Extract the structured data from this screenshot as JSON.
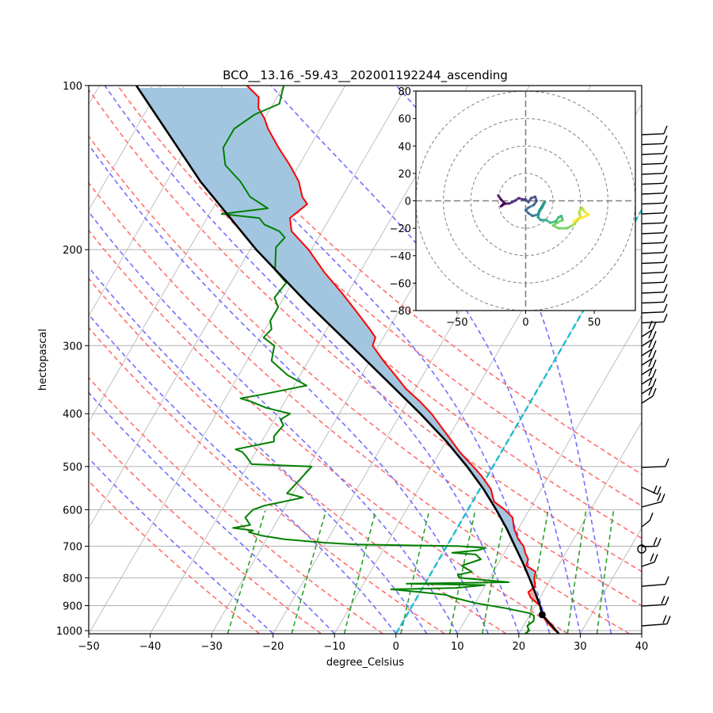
{
  "chart_data": {
    "type": "line",
    "subtype": "skew-t log-p",
    "title": "BCO__13.16_-59.43__202001192244_ascending",
    "xlabel": "degree_Celsius",
    "ylabel": "hectopascal",
    "xlim": [
      -50,
      40
    ],
    "ylim": [
      1013,
      100
    ],
    "yscale": "log",
    "grid": true,
    "x_ticks": [
      "−50",
      "−40",
      "−30",
      "−20",
      "−10",
      "0",
      "10",
      "20",
      "30",
      "40"
    ],
    "x_tick_values": [
      -50,
      -40,
      -30,
      -20,
      -10,
      0,
      10,
      20,
      30,
      40
    ],
    "y_ticks": [
      "100",
      "200",
      "300",
      "400",
      "500",
      "600",
      "700",
      "800",
      "900",
      "1000"
    ],
    "y_tick_values": [
      100,
      200,
      300,
      400,
      500,
      600,
      700,
      800,
      900,
      1000
    ],
    "colors": {
      "temperature": "#ff0000",
      "dewpoint": "#008000",
      "parcel": "#000000",
      "cape": "#f4a7a9",
      "cin": "#a3c6e0",
      "dry_adiabat": "#ff7070",
      "moist_adiabat": "#7070ff",
      "mixing_ratio": "#2ca02c",
      "zero_isotherm": "#17becf",
      "isotherm": "#b0b0b0"
    },
    "series": [
      {
        "name": "temperature",
        "points": [
          [
            1013,
            26.5
          ],
          [
            1000,
            25.6
          ],
          [
            960,
            23.2
          ],
          [
            935,
            22.0
          ],
          [
            900,
            20.8
          ],
          [
            870,
            18.5
          ],
          [
            850,
            17.6
          ],
          [
            830,
            18.2
          ],
          [
            800,
            17.2
          ],
          [
            780,
            16.9
          ],
          [
            760,
            14.8
          ],
          [
            740,
            14.5
          ],
          [
            720,
            13.4
          ],
          [
            700,
            12.5
          ],
          [
            680,
            11.0
          ],
          [
            650,
            9.3
          ],
          [
            620,
            8.0
          ],
          [
            600,
            6.0
          ],
          [
            580,
            3.5
          ],
          [
            550,
            1.8
          ],
          [
            520,
            -1.0
          ],
          [
            500,
            -3.2
          ],
          [
            470,
            -6.8
          ],
          [
            450,
            -9.0
          ],
          [
            420,
            -12.5
          ],
          [
            400,
            -15.0
          ],
          [
            380,
            -18.0
          ],
          [
            360,
            -21.5
          ],
          [
            340,
            -24.5
          ],
          [
            320,
            -27.8
          ],
          [
            300,
            -31.0
          ],
          [
            290,
            -31.3
          ],
          [
            280,
            -33.0
          ],
          [
            260,
            -36.8
          ],
          [
            240,
            -41.0
          ],
          [
            220,
            -45.8
          ],
          [
            200,
            -50.5
          ],
          [
            185,
            -55.0
          ],
          [
            175,
            -56.5
          ],
          [
            165,
            -55.0
          ],
          [
            160,
            -56.5
          ],
          [
            150,
            -58.5
          ],
          [
            140,
            -61.5
          ],
          [
            130,
            -65.0
          ],
          [
            120,
            -68.5
          ],
          [
            115,
            -70.0
          ],
          [
            110,
            -72.0
          ],
          [
            105,
            -73.0
          ],
          [
            100,
            -76.0
          ]
        ]
      },
      {
        "name": "dewpoint",
        "points": [
          [
            1013,
            21.0
          ],
          [
            1000,
            21.4
          ],
          [
            980,
            20.6
          ],
          [
            960,
            21.2
          ],
          [
            940,
            20.8
          ],
          [
            930,
            20.0
          ],
          [
            910,
            15.5
          ],
          [
            890,
            10.0
          ],
          [
            870,
            6.0
          ],
          [
            860,
            4.5
          ],
          [
            850,
            0.0
          ],
          [
            840,
            -5.0
          ],
          [
            835,
            5.5
          ],
          [
            825,
            9.8
          ],
          [
            820,
            -3.0
          ],
          [
            815,
            13.5
          ],
          [
            800,
            5.0
          ],
          [
            790,
            4.5
          ],
          [
            780,
            6.5
          ],
          [
            760,
            4.3
          ],
          [
            740,
            6.8
          ],
          [
            725,
            5.5
          ],
          [
            720,
            1.5
          ],
          [
            712,
            5.5
          ],
          [
            705,
            6.5
          ],
          [
            700,
            2.0
          ],
          [
            695,
            -15.0
          ],
          [
            690,
            -20.0
          ],
          [
            680,
            -27.0
          ],
          [
            670,
            -31.0
          ],
          [
            660,
            -33.5
          ],
          [
            655,
            -33.0
          ],
          [
            648,
            -36.5
          ],
          [
            640,
            -34.0
          ],
          [
            620,
            -35.5
          ],
          [
            600,
            -35.0
          ],
          [
            590,
            -33.5
          ],
          [
            570,
            -28.0
          ],
          [
            560,
            -31.0
          ],
          [
            540,
            -30.5
          ],
          [
            520,
            -30.0
          ],
          [
            500,
            -29.5
          ],
          [
            495,
            -39.5
          ],
          [
            480,
            -41.0
          ],
          [
            470,
            -42.2
          ],
          [
            465,
            -43.5
          ],
          [
            450,
            -38.0
          ],
          [
            440,
            -38.5
          ],
          [
            420,
            -38.0
          ],
          [
            410,
            -39.0
          ],
          [
            400,
            -38.0
          ],
          [
            390,
            -42.5
          ],
          [
            380,
            -45.5
          ],
          [
            375,
            -47.5
          ],
          [
            368,
            -44.0
          ],
          [
            355,
            -38.0
          ],
          [
            340,
            -42.0
          ],
          [
            320,
            -46.0
          ],
          [
            300,
            -47.0
          ],
          [
            290,
            -49.5
          ],
          [
            280,
            -49.0
          ],
          [
            270,
            -50.0
          ],
          [
            255,
            -50.0
          ],
          [
            245,
            -51.5
          ],
          [
            230,
            -51.0
          ],
          [
            218,
            -54.0
          ],
          [
            208,
            -55.0
          ],
          [
            198,
            -56.0
          ],
          [
            190,
            -55.5
          ],
          [
            185,
            -57.0
          ],
          [
            180,
            -60.0
          ],
          [
            175,
            -61.5
          ],
          [
            172,
            -68.0
          ],
          [
            168,
            -61.0
          ],
          [
            160,
            -65.0
          ],
          [
            150,
            -68.0
          ],
          [
            140,
            -72.0
          ],
          [
            130,
            -74.0
          ],
          [
            120,
            -74.0
          ],
          [
            113,
            -72.0
          ],
          [
            108,
            -69.0
          ],
          [
            104,
            -69.5
          ],
          [
            100,
            -70.0
          ]
        ]
      },
      {
        "name": "parcel",
        "points": [
          [
            1013,
            26.5
          ],
          [
            935,
            22.0
          ],
          [
            900,
            20.8
          ],
          [
            850,
            18.7
          ],
          [
            800,
            16.4
          ],
          [
            750,
            13.9
          ],
          [
            700,
            11.1
          ],
          [
            650,
            8.1
          ],
          [
            600,
            4.6
          ],
          [
            550,
            0.6
          ],
          [
            500,
            -4.2
          ],
          [
            450,
            -9.9
          ],
          [
            400,
            -16.8
          ],
          [
            350,
            -25.0
          ],
          [
            300,
            -34.5
          ],
          [
            250,
            -45.8
          ],
          [
            200,
            -59.0
          ],
          [
            150,
            -74.5
          ],
          [
            100,
            -94.0
          ]
        ]
      }
    ],
    "lcl": {
      "pressure": 935,
      "temperature": 22.0
    },
    "zero_isotherm": 0,
    "dry_adiabats_theta_k": [
      250,
      260,
      270,
      280,
      290,
      300,
      310,
      320,
      330,
      340,
      350,
      360
    ],
    "moist_adiabats_start_t": [
      -20,
      -10,
      0,
      5,
      10,
      15,
      20,
      25,
      30,
      35
    ],
    "mixing_ratios_gkg": [
      0.4,
      1,
      2,
      4,
      7,
      10,
      16,
      24,
      32
    ],
    "wind_barbs": "right side, one barb per pressure level, calm circle near 700 hPa",
    "hodograph": {
      "type": "line",
      "xlim": [
        -80,
        80
      ],
      "ylim": [
        -80,
        80
      ],
      "x_ticks": [
        "−50",
        "0",
        "50"
      ],
      "x_tick_values": [
        -50,
        0,
        50
      ],
      "y_ticks": [
        "80",
        "60",
        "40",
        "20",
        "0",
        "−20",
        "−40",
        "−60",
        "−80"
      ],
      "y_tick_values": [
        80,
        60,
        40,
        20,
        0,
        -20,
        -40,
        -60,
        -80
      ],
      "rings": [
        20,
        40,
        60,
        80
      ],
      "colormap": "viridis",
      "uv": [
        [
          -20,
          4
        ],
        [
          -18,
          1
        ],
        [
          -15,
          -2
        ],
        [
          -18,
          -4
        ],
        [
          -16,
          -2
        ],
        [
          -12,
          -2
        ],
        [
          -10,
          -1
        ],
        [
          -8,
          0
        ],
        [
          -5,
          2
        ],
        [
          -2,
          1
        ],
        [
          0,
          1
        ],
        [
          2,
          -1
        ],
        [
          4,
          2
        ],
        [
          7,
          3
        ],
        [
          8,
          0
        ],
        [
          6,
          -3
        ],
        [
          2,
          -5
        ],
        [
          0,
          -7
        ],
        [
          2,
          -9
        ],
        [
          5,
          -11
        ],
        [
          9,
          -10
        ],
        [
          10,
          -7
        ],
        [
          12,
          -4
        ],
        [
          13,
          -2
        ],
        [
          14,
          -1
        ],
        [
          12,
          -5
        ],
        [
          10,
          -8
        ],
        [
          9,
          -12
        ],
        [
          11,
          -14
        ],
        [
          15,
          -14
        ],
        [
          18,
          -16
        ],
        [
          22,
          -15
        ],
        [
          24,
          -12
        ],
        [
          26,
          -11
        ],
        [
          27,
          -14
        ],
        [
          23,
          -16
        ],
        [
          20,
          -18
        ],
        [
          24,
          -20
        ],
        [
          30,
          -20
        ],
        [
          34,
          -18
        ],
        [
          37,
          -15
        ],
        [
          40,
          -12
        ],
        [
          39,
          -8
        ],
        [
          41,
          -5
        ],
        [
          43,
          -8
        ],
        [
          46,
          -10
        ],
        [
          42,
          -12
        ],
        [
          38,
          -13
        ],
        [
          35,
          -15
        ]
      ]
    }
  }
}
